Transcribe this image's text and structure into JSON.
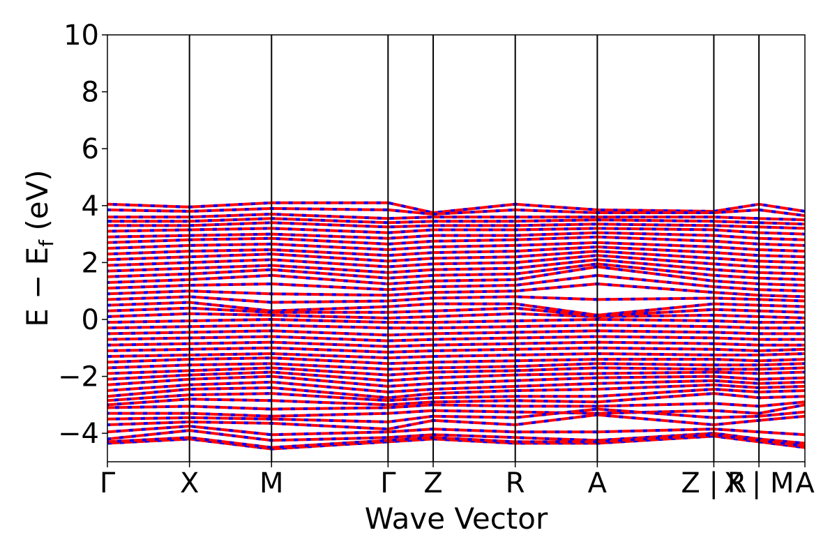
{
  "chart_data": {
    "type": "line",
    "title": "",
    "xlabel": "Wave Vector",
    "ylabel_main": "E − E",
    "ylabel_sub": "f",
    "ylabel_unit": " (eV)",
    "ylim": [
      -5,
      10
    ],
    "yticks": [
      -4,
      -2,
      0,
      2,
      4,
      6,
      8,
      10
    ],
    "ytick_labels": [
      "−4",
      "−2",
      "0",
      "2",
      "4",
      "6",
      "8",
      "10"
    ],
    "grid": false,
    "kpath": {
      "x_range": [
        0,
        8.5
      ],
      "ticks": [
        {
          "x": 0.0,
          "label": "Γ"
        },
        {
          "x": 1.0,
          "label": "X"
        },
        {
          "x": 2.0,
          "label": "M"
        },
        {
          "x": 3.42,
          "label": "Γ"
        },
        {
          "x": 3.97,
          "label": "Z"
        },
        {
          "x": 4.97,
          "label": "R"
        },
        {
          "x": 5.97,
          "label": "A"
        },
        {
          "x": 7.39,
          "label": "Z | R"
        },
        {
          "x": 7.94,
          "label": "X | M"
        },
        {
          "x": 8.5,
          "label": "A"
        }
      ]
    },
    "colors": {
      "spin_up": "#ff0000",
      "spin_down": "#0000ff",
      "frame": "#000000"
    },
    "series": [
      {
        "style": "dashed",
        "segment_energies": [
          [
            -4.35,
            -4.2,
            -4.55,
            -4.3,
            -4.2,
            -4.35,
            -4.35,
            -4.1,
            -4.3,
            -4.5
          ],
          [
            -4.2,
            -3.9,
            -4.25,
            -4.15,
            -4.05,
            -4.15,
            -4.25,
            -4.0,
            -4.2,
            -4.35
          ],
          [
            -3.7,
            -3.6,
            -3.65,
            -3.85,
            -3.55,
            -3.7,
            -3.35,
            -3.7,
            -3.55,
            -3.4
          ],
          [
            -3.3,
            -3.3,
            -3.4,
            -3.3,
            -3.2,
            -3.25,
            -3.3,
            -3.2,
            -3.3,
            -3.0
          ],
          [
            -3.0,
            -2.8,
            -2.85,
            -3.0,
            -2.9,
            -2.85,
            -2.9,
            -2.6,
            -2.75,
            -2.7
          ],
          [
            -2.7,
            -2.45,
            -2.4,
            -2.75,
            -2.6,
            -2.5,
            -2.45,
            -2.3,
            -2.4,
            -2.35
          ],
          [
            -2.3,
            -2.1,
            -2.0,
            -2.35,
            -2.25,
            -2.15,
            -2.05,
            -2.0,
            -2.1,
            -2.05
          ],
          [
            -1.9,
            -1.8,
            -1.7,
            -1.95,
            -1.85,
            -1.8,
            -1.7,
            -1.75,
            -1.75,
            -1.7
          ],
          [
            -1.5,
            -1.4,
            -1.35,
            -1.55,
            -1.5,
            -1.45,
            -1.4,
            -1.4,
            -1.45,
            -1.4
          ],
          [
            -1.1,
            -1.05,
            -1.0,
            -1.15,
            -1.1,
            -1.05,
            -1.0,
            -1.05,
            -1.1,
            -1.05
          ],
          [
            -0.7,
            -0.65,
            -0.6,
            -0.75,
            -0.7,
            -0.65,
            -0.6,
            -0.65,
            -0.7,
            -0.7
          ],
          [
            -0.3,
            -0.25,
            -0.2,
            -0.3,
            -0.3,
            -0.25,
            -0.2,
            -0.25,
            -0.3,
            -0.3
          ],
          [
            0.1,
            0.2,
            0.15,
            0.05,
            0.1,
            0.2,
            0.1,
            0.15,
            0.1,
            0.05
          ],
          [
            0.5,
            0.6,
            0.3,
            0.45,
            0.55,
            0.55,
            0.15,
            0.55,
            0.5,
            0.45
          ],
          [
            0.9,
            1.0,
            0.9,
            0.85,
            0.95,
            1.0,
            1.25,
            0.95,
            0.85,
            0.8
          ],
          [
            1.3,
            1.4,
            1.55,
            1.25,
            1.35,
            1.4,
            1.85,
            1.35,
            1.25,
            1.2
          ],
          [
            1.7,
            1.8,
            1.9,
            1.65,
            1.75,
            1.8,
            2.1,
            1.75,
            1.65,
            1.6
          ],
          [
            2.1,
            2.2,
            2.3,
            2.05,
            2.15,
            2.2,
            2.4,
            2.15,
            2.05,
            2.0
          ],
          [
            2.5,
            2.6,
            2.65,
            2.45,
            2.55,
            2.6,
            2.7,
            2.55,
            2.45,
            2.4
          ],
          [
            2.9,
            2.95,
            3.0,
            2.85,
            2.95,
            2.95,
            3.05,
            2.95,
            2.85,
            2.8
          ],
          [
            3.3,
            3.3,
            3.4,
            3.25,
            3.3,
            3.3,
            3.35,
            3.3,
            3.25,
            3.2
          ],
          [
            3.6,
            3.6,
            3.7,
            3.55,
            3.6,
            3.6,
            3.6,
            3.6,
            3.55,
            3.5
          ],
          [
            4.05,
            3.95,
            4.1,
            4.1,
            3.75,
            4.05,
            3.85,
            3.8,
            4.05,
            3.8
          ]
        ]
      },
      {
        "style": "dashed",
        "segment_energies": [
          [
            -4.3,
            -4.15,
            -4.5,
            -4.25,
            -4.15,
            -4.3,
            -4.3,
            -4.05,
            -4.25,
            -4.45
          ],
          [
            -3.95,
            -3.75,
            -4.05,
            -3.95,
            -3.85,
            -3.95,
            -3.95,
            -3.85,
            -3.95,
            -4.05
          ],
          [
            -3.5,
            -3.45,
            -3.5,
            -3.6,
            -3.4,
            -3.45,
            -3.15,
            -3.45,
            -3.4,
            -3.25
          ],
          [
            -3.1,
            -3.05,
            -3.15,
            -3.1,
            -3.0,
            -3.05,
            -3.05,
            -2.95,
            -3.05,
            -2.9
          ],
          [
            -2.85,
            -2.65,
            -2.6,
            -2.85,
            -2.75,
            -2.7,
            -2.7,
            -2.45,
            -2.55,
            -2.5
          ],
          [
            -2.5,
            -2.3,
            -2.2,
            -2.55,
            -2.45,
            -2.35,
            -2.25,
            -2.15,
            -2.25,
            -2.2
          ],
          [
            -2.1,
            -1.95,
            -1.85,
            -2.15,
            -2.05,
            -1.95,
            -1.9,
            -1.85,
            -1.9,
            -1.85
          ],
          [
            -1.7,
            -1.6,
            -1.55,
            -1.75,
            -1.7,
            -1.65,
            -1.55,
            -1.6,
            -1.6,
            -1.55
          ],
          [
            -1.3,
            -1.25,
            -1.2,
            -1.35,
            -1.3,
            -1.25,
            -1.2,
            -1.25,
            -1.25,
            -1.2
          ],
          [
            -0.9,
            -0.85,
            -0.8,
            -0.95,
            -0.9,
            -0.85,
            -0.8,
            -0.85,
            -0.9,
            -0.9
          ],
          [
            -0.5,
            -0.45,
            -0.4,
            -0.55,
            -0.5,
            -0.45,
            -0.4,
            -0.45,
            -0.5,
            -0.5
          ],
          [
            -0.1,
            -0.05,
            0.0,
            -0.1,
            -0.1,
            -0.05,
            0.0,
            -0.05,
            -0.1,
            -0.1
          ],
          [
            0.3,
            0.4,
            0.25,
            0.25,
            0.3,
            0.4,
            0.12,
            0.35,
            0.3,
            0.25
          ],
          [
            0.7,
            0.8,
            0.6,
            0.65,
            0.75,
            0.8,
            0.7,
            0.75,
            0.7,
            0.65
          ],
          [
            1.1,
            1.2,
            1.25,
            1.05,
            1.15,
            1.2,
            1.55,
            1.15,
            1.05,
            1.0
          ],
          [
            1.5,
            1.6,
            1.75,
            1.45,
            1.55,
            1.6,
            1.95,
            1.55,
            1.45,
            1.4
          ],
          [
            1.9,
            2.0,
            2.1,
            1.85,
            1.95,
            2.0,
            2.25,
            1.95,
            1.85,
            1.8
          ],
          [
            2.3,
            2.4,
            2.45,
            2.25,
            2.35,
            2.4,
            2.55,
            2.35,
            2.25,
            2.2
          ],
          [
            2.7,
            2.8,
            2.85,
            2.65,
            2.75,
            2.8,
            2.9,
            2.75,
            2.65,
            2.6
          ],
          [
            3.1,
            3.15,
            3.2,
            3.05,
            3.15,
            3.15,
            3.2,
            3.15,
            3.05,
            3.0
          ],
          [
            3.45,
            3.45,
            3.55,
            3.4,
            3.45,
            3.45,
            3.5,
            3.45,
            3.4,
            3.35
          ],
          [
            3.85,
            3.8,
            3.9,
            3.85,
            3.7,
            3.85,
            3.75,
            3.75,
            3.85,
            3.65
          ]
        ]
      }
    ]
  }
}
